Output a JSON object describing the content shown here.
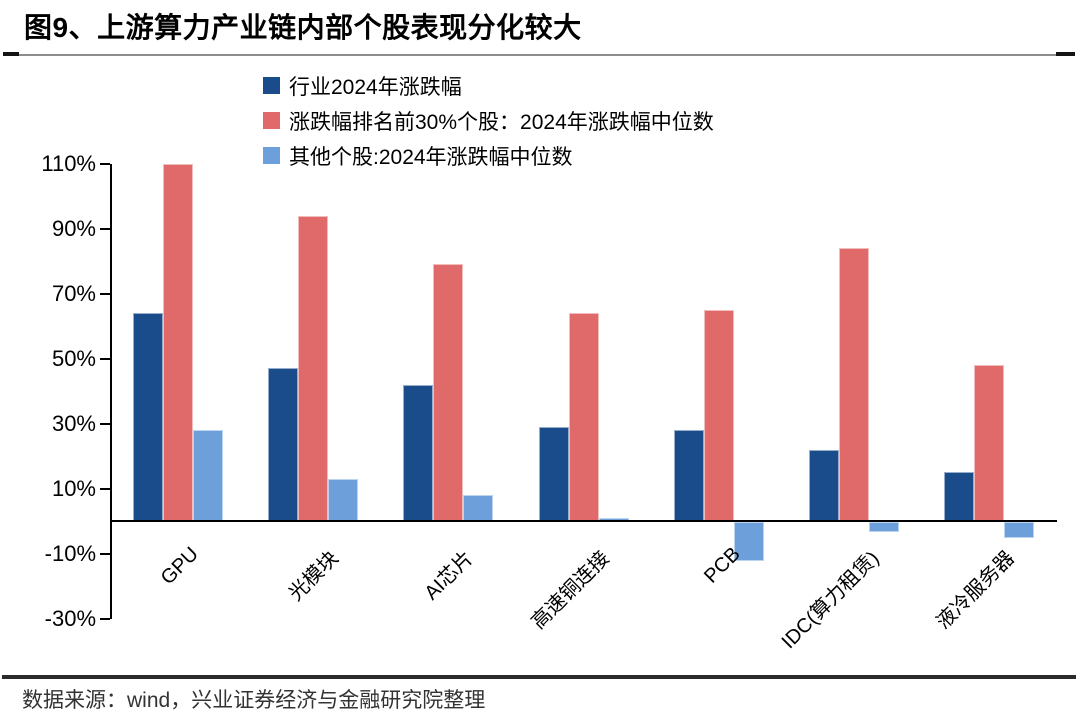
{
  "figure": {
    "title": "图9、上游算力产业链内部个股表现分化较大",
    "source": "数据来源：wind，兴业证券经济与金融研究院整理"
  },
  "chart_data": {
    "type": "bar",
    "title": "上游算力产业链内部个股表现分化较大",
    "categories": [
      "GPU",
      "光模块",
      "AI芯片",
      "高速铜连接",
      "PCB",
      "IDC(算力租赁)",
      "液冷服务器"
    ],
    "series": [
      {
        "name": "行业2024年涨跌幅",
        "color": "#1A4C8B",
        "values": [
          64,
          47,
          42,
          29,
          28,
          22,
          15
        ]
      },
      {
        "name": "涨跌幅排名前30%个股：2024年涨跌幅中位数",
        "color": "#E06A6A",
        "values": [
          110,
          94,
          79,
          64,
          65,
          84,
          48
        ]
      },
      {
        "name": "其他个股:2024年涨跌幅中位数",
        "color": "#6D9FDB",
        "values": [
          28,
          13,
          8,
          1,
          -12,
          -3,
          -5
        ]
      }
    ],
    "xlabel": "",
    "ylabel": "",
    "unit": "%",
    "y_ticks": [
      "110%",
      "90%",
      "70%",
      "50%",
      "30%",
      "10%",
      "-10%",
      "-30%"
    ],
    "y_tick_values": [
      110,
      90,
      70,
      50,
      30,
      10,
      -10,
      -30
    ],
    "ylim": [
      -30,
      112
    ],
    "grid": false,
    "legend_position": "top"
  }
}
